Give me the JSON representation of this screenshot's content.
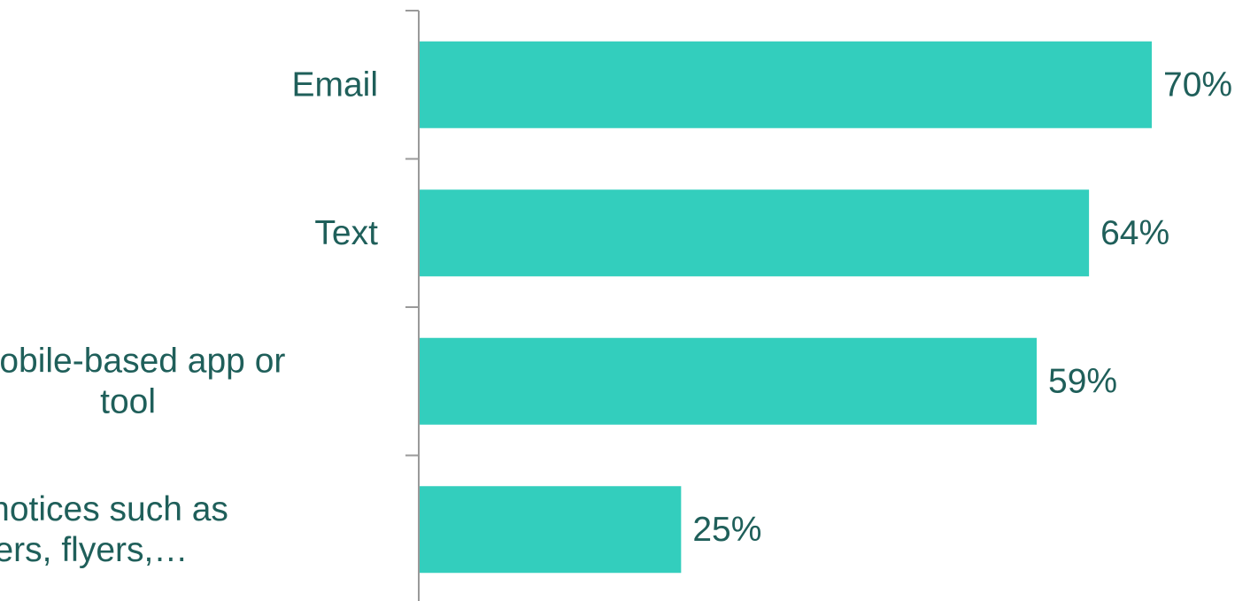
{
  "chart_data": {
    "type": "bar",
    "orientation": "horizontal",
    "categories": [
      [
        "Email"
      ],
      [
        "Text"
      ],
      [
        "Mobile-based app or",
        "tool"
      ],
      [
        "Paper notices such as",
        "posters, flyers,…"
      ]
    ],
    "values": [
      70,
      64,
      59,
      25
    ],
    "value_labels": [
      "70%",
      "64%",
      "59%",
      "25%"
    ],
    "xlim": [
      0,
      100
    ],
    "grid": false,
    "legend": "none",
    "colors": {
      "bar": "#33cebd",
      "text": "#1f5f5a",
      "axis": "#9a9a9a"
    }
  }
}
